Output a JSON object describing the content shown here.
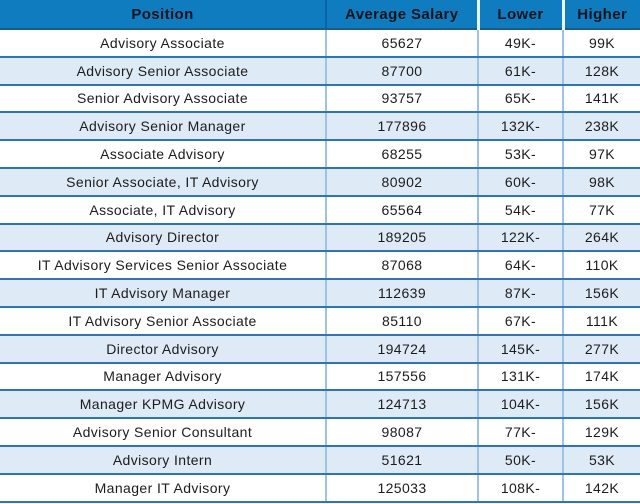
{
  "table": {
    "columns": [
      "Position",
      "Average Salary",
      "Lower",
      "Higher"
    ],
    "rows": [
      {
        "position": "Advisory Associate",
        "salary": "65627",
        "lower": "49K-",
        "higher": "99K"
      },
      {
        "position": "Advisory Senior Associate",
        "salary": "87700",
        "lower": "61K-",
        "higher": "128K"
      },
      {
        "position": "Senior Advisory Associate",
        "salary": "93757",
        "lower": "65K-",
        "higher": "141K"
      },
      {
        "position": "Advisory Senior Manager",
        "salary": "177896",
        "lower": "132K-",
        "higher": "238K"
      },
      {
        "position": "Associate Advisory",
        "salary": "68255",
        "lower": "53K-",
        "higher": "97K"
      },
      {
        "position": "Senior Associate, IT Advisory",
        "salary": "80902",
        "lower": "60K-",
        "higher": "98K"
      },
      {
        "position": "Associate, IT Advisory",
        "salary": "65564",
        "lower": "54K-",
        "higher": "77K"
      },
      {
        "position": "Advisory Director",
        "salary": "189205",
        "lower": "122K-",
        "higher": "264K"
      },
      {
        "position": "IT Advisory Services Senior Associate",
        "salary": "87068",
        "lower": "64K-",
        "higher": "110K"
      },
      {
        "position": "IT Advisory Manager",
        "salary": "112639",
        "lower": "87K-",
        "higher": "156K"
      },
      {
        "position": "IT Advisory Senior Associate",
        "salary": "85110",
        "lower": "67K-",
        "higher": "111K"
      },
      {
        "position": "Director Advisory",
        "salary": "194724",
        "lower": "145K-",
        "higher": "277K"
      },
      {
        "position": "Manager Advisory",
        "salary": "157556",
        "lower": "131K-",
        "higher": "174K"
      },
      {
        "position": "Manager KPMG Advisory",
        "salary": "124713",
        "lower": "104K-",
        "higher": "156K"
      },
      {
        "position": "Advisory Senior Consultant",
        "salary": "98087",
        "lower": "77K-",
        "higher": "129K"
      },
      {
        "position": "Advisory Intern",
        "salary": "51621",
        "lower": "50K-",
        "higher": "53K"
      },
      {
        "position": "Manager IT Advisory",
        "salary": "125033",
        "lower": "108K-",
        "higher": "142K"
      }
    ]
  },
  "colors": {
    "header_background": "#107CC0",
    "header_text": "#10141c",
    "row_alt_background": "#deeaf6",
    "row_separator": "#2e75b6",
    "column_separator": "#9dc3e6",
    "body_text": "#1c1c1c"
  },
  "chart_data": {
    "type": "table",
    "title": "",
    "columns": [
      "Position",
      "Average Salary",
      "Lower",
      "Higher"
    ],
    "rows": [
      [
        "Advisory Associate",
        65627,
        "49K-",
        "99K"
      ],
      [
        "Advisory Senior Associate",
        87700,
        "61K-",
        "128K"
      ],
      [
        "Senior Advisory Associate",
        93757,
        "65K-",
        "141K"
      ],
      [
        "Advisory Senior Manager",
        177896,
        "132K-",
        "238K"
      ],
      [
        "Associate Advisory",
        68255,
        "53K-",
        "97K"
      ],
      [
        "Senior Associate, IT Advisory",
        80902,
        "60K-",
        "98K"
      ],
      [
        "Associate, IT Advisory",
        65564,
        "54K-",
        "77K"
      ],
      [
        "Advisory Director",
        189205,
        "122K-",
        "264K"
      ],
      [
        "IT Advisory Services Senior Associate",
        87068,
        "64K-",
        "110K"
      ],
      [
        "IT Advisory Manager",
        112639,
        "87K-",
        "156K"
      ],
      [
        "IT Advisory Senior Associate",
        85110,
        "67K-",
        "111K"
      ],
      [
        "Director Advisory",
        194724,
        "145K-",
        "277K"
      ],
      [
        "Manager Advisory",
        157556,
        "131K-",
        "174K"
      ],
      [
        "Manager KPMG Advisory",
        124713,
        "104K-",
        "156K"
      ],
      [
        "Advisory Senior Consultant",
        98087,
        "77K-",
        "129K"
      ],
      [
        "Advisory Intern",
        51621,
        "50K-",
        "53K"
      ],
      [
        "Manager IT Advisory",
        125033,
        "108K-",
        "142K"
      ]
    ]
  }
}
